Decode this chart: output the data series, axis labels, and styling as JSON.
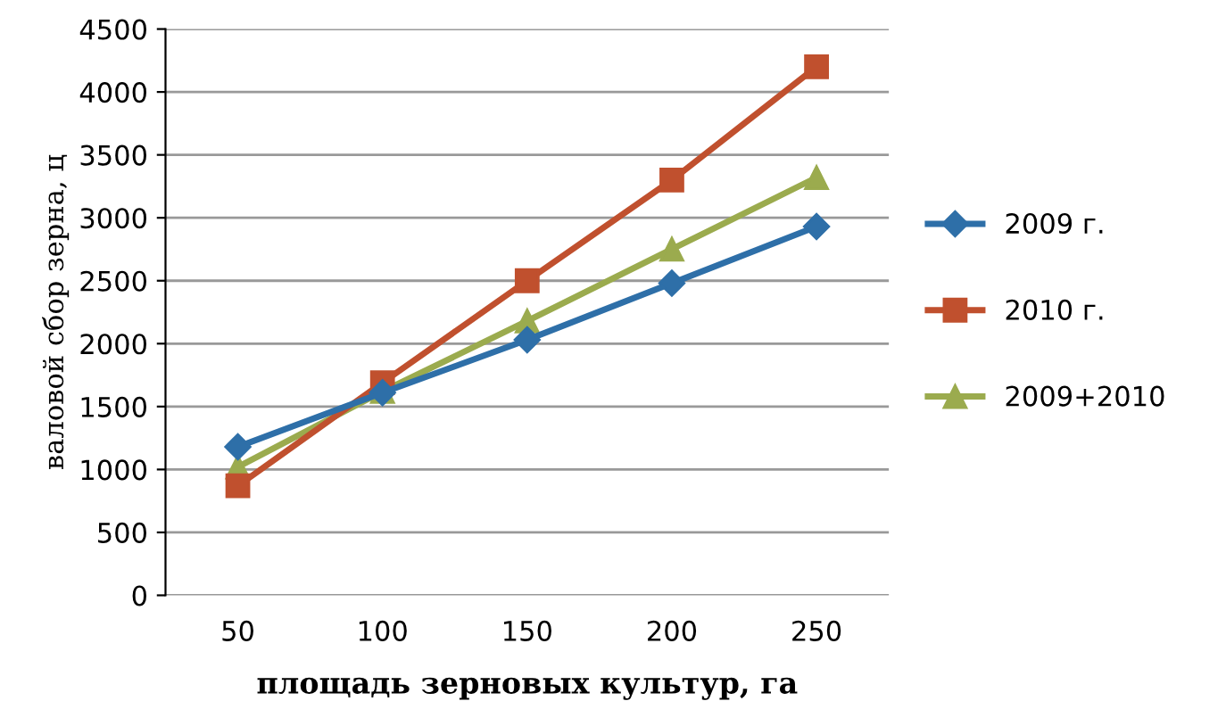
{
  "chart_data": {
    "type": "line",
    "xlabel": "площадь зерновых культур, га",
    "ylabel": "валовой сбор зерна, ц",
    "categories": [
      "50",
      "100",
      "150",
      "200",
      "250"
    ],
    "series": [
      {
        "name": "2009 г.",
        "color": "#2e6fa8",
        "marker": "diamond",
        "values": [
          1180,
          1610,
          2030,
          2480,
          2930
        ]
      },
      {
        "name": "2010 г.",
        "color": "#c0502e",
        "marker": "square",
        "values": [
          870,
          1690,
          2500,
          3300,
          4200
        ]
      },
      {
        "name": "2009+2010",
        "color": "#9bab4e",
        "marker": "triangle",
        "values": [
          1020,
          1620,
          2180,
          2750,
          3320
        ]
      }
    ],
    "ylim": [
      0,
      4500
    ],
    "yticks": [
      0,
      500,
      1000,
      1500,
      2000,
      2500,
      3000,
      3500,
      4000,
      4500
    ],
    "grid": "y",
    "legend": "right"
  }
}
